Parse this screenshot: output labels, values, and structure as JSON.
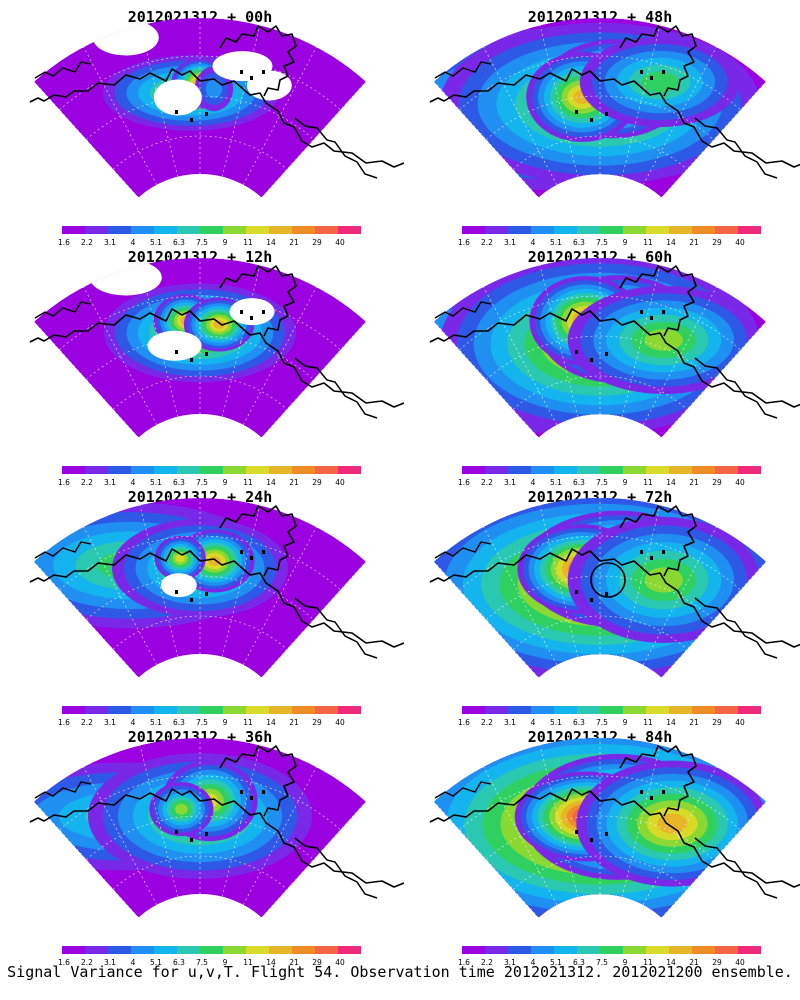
{
  "panels": [
    {
      "title": "2012021312 + 00h",
      "lead": "00h",
      "blobs": [
        [
          -2,
          0.52,
          1.0,
          0.55,
          0.42,
          22
        ],
        [
          0,
          0.58,
          1.0,
          0.18,
          0.28,
          30
        ],
        [
          3,
          0.55,
          0.55,
          0.12,
          0.25,
          10
        ]
      ],
      "gaps": [
        [
          -5,
          0.5,
          0.16,
          0.12
        ],
        [
          14,
          0.65,
          0.15,
          0.1
        ],
        [
          -12,
          0.95,
          0.22,
          0.12
        ],
        [
          8,
          0.72,
          0.2,
          0.1
        ]
      ]
    },
    {
      "title": "2012021312 + 12h",
      "lead": "12h",
      "blobs": [
        [
          0,
          0.52,
          1.0,
          0.6,
          0.55,
          24
        ],
        [
          -3,
          0.6,
          1.0,
          0.2,
          0.3,
          28
        ],
        [
          4,
          0.58,
          1.0,
          0.22,
          0.3,
          28
        ]
      ],
      "gaps": [
        [
          -6,
          0.45,
          0.18,
          0.1
        ],
        [
          10,
          0.7,
          0.15,
          0.09
        ],
        [
          -12,
          0.95,
          0.24,
          0.12
        ]
      ]
    },
    {
      "title": "2012021312 + 24h",
      "lead": "24h",
      "blobs": [
        [
          -14,
          0.65,
          1.0,
          0.9,
          0.7,
          18
        ],
        [
          0,
          0.55,
          1.0,
          0.55,
          0.55,
          20
        ],
        [
          3,
          0.6,
          1.0,
          0.25,
          0.35,
          26
        ],
        [
          -4,
          0.62,
          0.9,
          0.16,
          0.25,
          24
        ]
      ],
      "gaps": [
        [
          -5,
          0.45,
          0.12,
          0.08
        ]
      ]
    },
    {
      "title": "2012021312 + 36h",
      "lead": "36h",
      "blobs": [
        [
          -16,
          0.6,
          1.0,
          0.9,
          0.6,
          16
        ],
        [
          0,
          0.5,
          1.0,
          0.7,
          0.7,
          22
        ],
        [
          2,
          0.6,
          1.0,
          0.3,
          0.45,
          24
        ],
        [
          -4,
          0.55,
          0.9,
          0.2,
          0.3,
          22
        ]
      ],
      "gaps": []
    },
    {
      "title": "2012021312 + 48h",
      "lead": "48h",
      "blobs": [
        [
          -10,
          0.45,
          1.0,
          1.2,
          0.9,
          20
        ],
        [
          0,
          0.45,
          1.0,
          1.0,
          0.9,
          24
        ],
        [
          3,
          0.55,
          1.0,
          0.45,
          0.55,
          30
        ],
        [
          -4,
          0.5,
          1.0,
          0.35,
          0.5,
          28
        ],
        [
          12,
          0.65,
          0.6,
          0.5,
          0.5,
          18
        ]
      ],
      "gaps": []
    },
    {
      "title": "2012021312 + 60h",
      "lead": "60h",
      "blobs": [
        [
          -12,
          0.45,
          1.0,
          1.2,
          0.9,
          22
        ],
        [
          0,
          0.45,
          1.0,
          1.0,
          1.0,
          26
        ],
        [
          4,
          0.55,
          1.0,
          0.5,
          0.6,
          32
        ],
        [
          -3,
          0.6,
          1.0,
          0.35,
          0.5,
          30
        ],
        [
          14,
          0.55,
          0.6,
          0.6,
          0.6,
          20
        ]
      ],
      "gaps": []
    },
    {
      "title": "2012021312 + 72h",
      "lead": "72h",
      "blobs": [
        [
          -12,
          0.45,
          1.0,
          1.4,
          1.0,
          28
        ],
        [
          0,
          0.45,
          1.0,
          1.2,
          1.1,
          30
        ],
        [
          4,
          0.55,
          1.0,
          0.6,
          0.65,
          36
        ],
        [
          -4,
          0.55,
          1.0,
          0.4,
          0.5,
          34
        ],
        [
          14,
          0.55,
          0.6,
          0.6,
          0.7,
          22
        ]
      ],
      "gaps": []
    },
    {
      "title": "2012021312 + 84h",
      "lead": "84h",
      "blobs": [
        [
          -10,
          0.45,
          1.0,
          1.4,
          1.1,
          30
        ],
        [
          0,
          0.45,
          1.0,
          1.3,
          1.2,
          34
        ],
        [
          4,
          0.5,
          1.0,
          0.6,
          0.7,
          38
        ],
        [
          -3,
          0.5,
          1.0,
          0.45,
          0.5,
          36
        ],
        [
          16,
          0.55,
          0.6,
          0.6,
          0.7,
          26
        ]
      ],
      "gaps": []
    }
  ],
  "colorbar": {
    "labels": [
      "1.6",
      "2.2",
      "3.1",
      "4",
      "5.1",
      "6.3",
      "7.5",
      "9",
      "11",
      "14",
      "21",
      "29",
      "40"
    ],
    "colors": [
      "#9b00e0",
      "#7a28e8",
      "#2e59e6",
      "#1f90f2",
      "#14b4ee",
      "#2ac8b0",
      "#30d060",
      "#8cd832",
      "#d8da28",
      "#e8b428",
      "#f08c28",
      "#f46446",
      "#f02a78"
    ]
  },
  "overlay": {
    "panel_index": 6,
    "shape": "circle"
  },
  "footer": {
    "caption": "Signal Variance for u,v,T. Flight 54. Observation time 2012021312. 2012021200 ensemble."
  }
}
